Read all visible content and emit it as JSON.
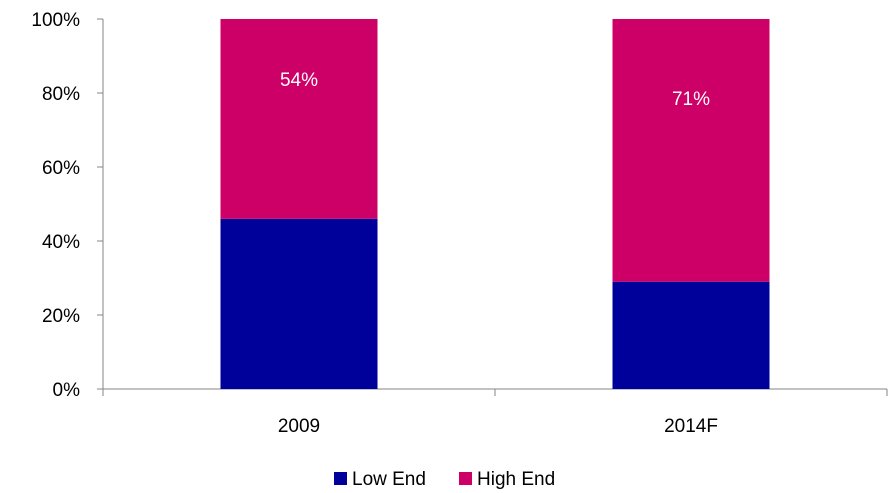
{
  "chart_data": {
    "type": "bar",
    "stacked": true,
    "percent": true,
    "categories": [
      "2009",
      "2014F"
    ],
    "series": [
      {
        "name": "Low End",
        "color": "#00009A",
        "values": [
          46,
          29
        ],
        "labels": [
          "",
          ""
        ]
      },
      {
        "name": "High End",
        "color": "#CC0066",
        "values": [
          54,
          71
        ],
        "labels": [
          "54%",
          "71%"
        ]
      }
    ],
    "ylim": [
      0,
      100
    ],
    "yticks": [
      0,
      20,
      40,
      60,
      80,
      100
    ],
    "ytick_labels": [
      "0%",
      "20%",
      "40%",
      "60%",
      "80%",
      "100%"
    ],
    "title": "",
    "xlabel": "",
    "ylabel": "",
    "grid": false,
    "legend_position": "bottom"
  }
}
